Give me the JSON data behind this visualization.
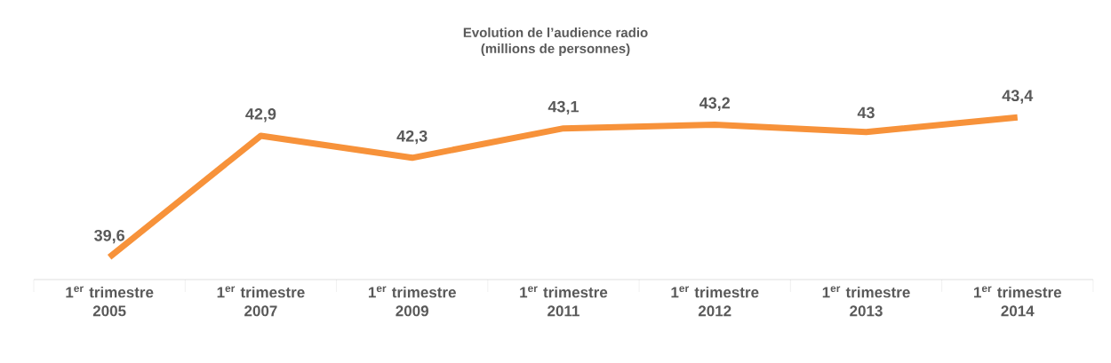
{
  "chart_data": {
    "type": "line",
    "title": "Evolution de l’audience radio",
    "subtitle": "(millions de personnes)",
    "categories": [
      "1$^{er}$ trimestre 2005",
      "1$^{er}$ trimestre 2007",
      "1$^{er}$ trimestre 2009",
      "1$^{er}$ trimestre 2011",
      "1$^{er}$ trimestre 2012",
      "1$^{er}$ trimestre 2013",
      "1$^{er}$ trimestre 2014"
    ],
    "values": [
      39.6,
      42.9,
      42.3,
      43.1,
      43.2,
      43.0,
      43.4
    ],
    "value_labels": [
      "39,6",
      "42,9",
      "42,3",
      "43,1",
      "43,2",
      "43",
      "43,4"
    ],
    "color": "#f7923a",
    "marker": "none",
    "line_style": "solid"
  }
}
